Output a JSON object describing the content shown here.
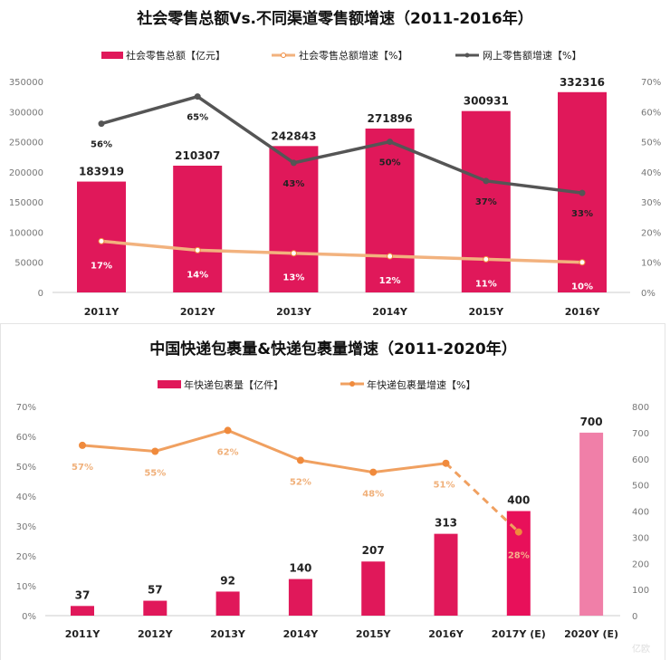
{
  "chart_data": [
    {
      "type": "bar",
      "title": "社会零售总额Vs.不同渠道零售额增速（2011-2016年）",
      "categories": [
        "2011Y",
        "2012Y",
        "2013Y",
        "2014Y",
        "2015Y",
        "2016Y"
      ],
      "legend_position": "top",
      "grid": false,
      "y_left": {
        "lim": [
          0,
          350000
        ],
        "ticks": [
          "0",
          "50000",
          "100000",
          "150000",
          "200000",
          "250000",
          "300000",
          "350000"
        ]
      },
      "y_right": {
        "lim": [
          0,
          70
        ],
        "ticks": [
          "0%",
          "10%",
          "20%",
          "30%",
          "40%",
          "50%",
          "60%",
          "70%"
        ]
      },
      "series": [
        {
          "name": "社会零售总额【亿元】",
          "type": "bar",
          "axis": "left",
          "color": "#e0185a",
          "values": [
            183919,
            210307,
            242843,
            271896,
            300931,
            332316
          ],
          "labels": [
            "183919",
            "210307",
            "242843",
            "271896",
            "300931",
            "332316"
          ]
        },
        {
          "name": "社会零售总额增速【%】",
          "type": "line",
          "axis": "right",
          "color": "#f2b27e",
          "values": [
            17,
            14,
            13,
            12,
            11,
            10
          ],
          "labels": [
            "17%",
            "14%",
            "13%",
            "12%",
            "11%",
            "10%"
          ]
        },
        {
          "name": "网上零售额增速【%】",
          "type": "line",
          "axis": "right",
          "color": "#555555",
          "values": [
            56,
            65,
            43,
            50,
            37,
            33
          ],
          "labels": [
            "56%",
            "65%",
            "43%",
            "50%",
            "37%",
            "33%"
          ]
        }
      ]
    },
    {
      "type": "bar",
      "title": "中国快递包裹量&快递包裹量增速（2011-2020年）",
      "categories": [
        "2011Y",
        "2012Y",
        "2013Y",
        "2014Y",
        "2015Y",
        "2016Y",
        "2017Y (E)",
        "2020Y (E)"
      ],
      "legend_position": "top",
      "grid": false,
      "y_left": {
        "lim": [
          0,
          70
        ],
        "ticks": [
          "0%",
          "10%",
          "20%",
          "30%",
          "40%",
          "50%",
          "60%",
          "70%"
        ]
      },
      "y_right": {
        "lim": [
          0,
          800
        ],
        "ticks": [
          "0",
          "100",
          "200",
          "300",
          "400",
          "500",
          "600",
          "700",
          "800"
        ]
      },
      "series": [
        {
          "name": "年快递包裹量【亿件】",
          "type": "bar",
          "axis": "right",
          "colors": [
            "#e0185a",
            "#e0185a",
            "#e0185a",
            "#e0185a",
            "#e0185a",
            "#e0185a",
            "#e8105a",
            "#f07fa8"
          ],
          "values": [
            37,
            57,
            92,
            140,
            207,
            313,
            400,
            700
          ],
          "labels": [
            "37",
            "57",
            "92",
            "140",
            "207",
            "313",
            "400",
            "700"
          ]
        },
        {
          "name": "年快递包裹量增速【%】",
          "type": "line",
          "axis": "left",
          "color": "#f0a060",
          "marker_color": "#f08a3c",
          "values": [
            57,
            55,
            62,
            52,
            48,
            51,
            28,
            null
          ],
          "labels": [
            "57%",
            "55%",
            "62%",
            "52%",
            "48%",
            "51%",
            "28%",
            ""
          ],
          "dashed_last_segment": true
        }
      ]
    }
  ],
  "watermark": "亿欧"
}
